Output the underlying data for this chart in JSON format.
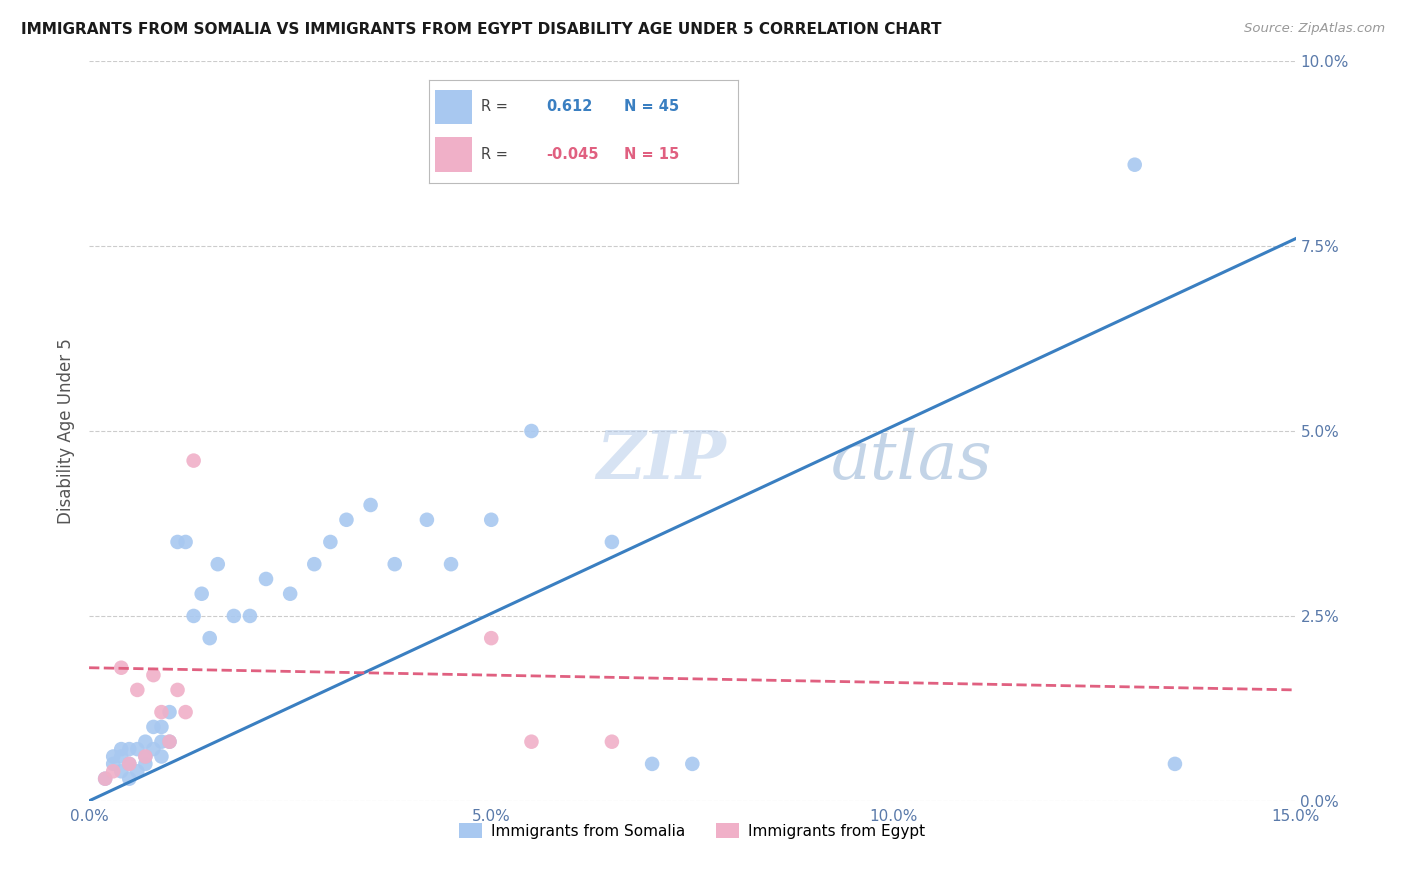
{
  "title": "IMMIGRANTS FROM SOMALIA VS IMMIGRANTS FROM EGYPT DISABILITY AGE UNDER 5 CORRELATION CHART",
  "source": "Source: ZipAtlas.com",
  "ylabel": "Disability Age Under 5",
  "legend_label1": "Immigrants from Somalia",
  "legend_label2": "Immigrants from Egypt",
  "r1": 0.612,
  "n1": 45,
  "r2": -0.045,
  "n2": 15,
  "xlim": [
    0.0,
    0.15
  ],
  "ylim": [
    0.0,
    0.1
  ],
  "xticks": [
    0.0,
    0.05,
    0.1,
    0.15
  ],
  "yticks": [
    0.0,
    0.025,
    0.05,
    0.075,
    0.1
  ],
  "color_somalia": "#a8c8f0",
  "color_egypt": "#f0b0c8",
  "color_line_somalia": "#3a7fc1",
  "color_line_egypt": "#e06080",
  "watermark_zip": "ZIP",
  "watermark_atlas": "atlas",
  "somalia_x": [
    0.002,
    0.003,
    0.003,
    0.004,
    0.004,
    0.004,
    0.005,
    0.005,
    0.005,
    0.006,
    0.006,
    0.007,
    0.007,
    0.007,
    0.008,
    0.008,
    0.009,
    0.009,
    0.009,
    0.01,
    0.01,
    0.011,
    0.012,
    0.013,
    0.014,
    0.015,
    0.016,
    0.018,
    0.02,
    0.022,
    0.025,
    0.028,
    0.03,
    0.032,
    0.035,
    0.038,
    0.042,
    0.045,
    0.05,
    0.055,
    0.065,
    0.07,
    0.075,
    0.13,
    0.135
  ],
  "somalia_y": [
    0.003,
    0.005,
    0.006,
    0.004,
    0.006,
    0.007,
    0.003,
    0.005,
    0.007,
    0.004,
    0.007,
    0.005,
    0.006,
    0.008,
    0.007,
    0.01,
    0.006,
    0.008,
    0.01,
    0.008,
    0.012,
    0.035,
    0.035,
    0.025,
    0.028,
    0.022,
    0.032,
    0.025,
    0.025,
    0.03,
    0.028,
    0.032,
    0.035,
    0.038,
    0.04,
    0.032,
    0.038,
    0.032,
    0.038,
    0.05,
    0.035,
    0.005,
    0.005,
    0.086,
    0.005
  ],
  "egypt_x": [
    0.002,
    0.003,
    0.004,
    0.005,
    0.006,
    0.007,
    0.008,
    0.009,
    0.01,
    0.011,
    0.012,
    0.013,
    0.05,
    0.055,
    0.065
  ],
  "egypt_y": [
    0.003,
    0.004,
    0.018,
    0.005,
    0.015,
    0.006,
    0.017,
    0.012,
    0.008,
    0.015,
    0.012,
    0.046,
    0.022,
    0.008,
    0.008
  ],
  "somalia_line_x": [
    0.0,
    0.15
  ],
  "somalia_line_y": [
    0.0,
    0.076
  ],
  "egypt_line_x": [
    0.0,
    0.15
  ],
  "egypt_line_y": [
    0.018,
    0.015
  ]
}
